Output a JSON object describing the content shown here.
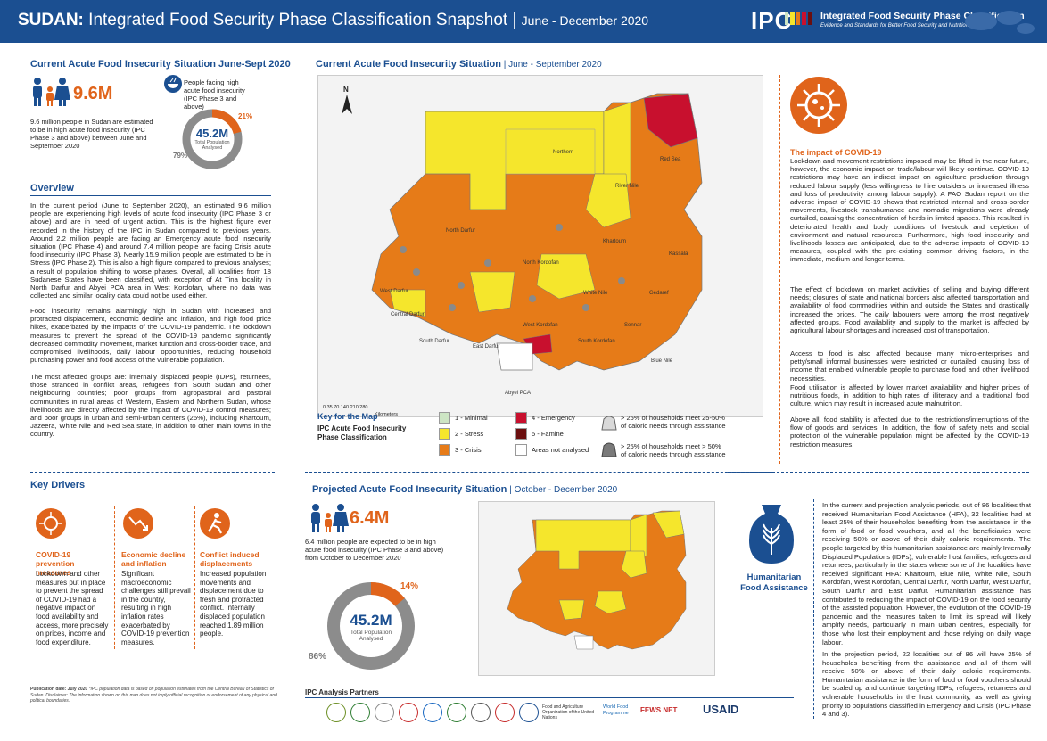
{
  "header": {
    "country": "SUDAN:",
    "title": "Integrated Food Security Phase Classification Snapshot",
    "sep": "|",
    "period": "June - December 2020",
    "logo": "IPC",
    "logo_name": "Integrated Food Security Phase Classification",
    "logo_tag": "Evidence and Standards for Better Food Security and Nutrition Decisions"
  },
  "current_summary": {
    "title": "Current Acute Food Insecurity Situation June-Sept 2020",
    "number": "9.6M",
    "description": "9.6 million people in Sudan are estimated to be in high acute food insecurity (IPC Phase 3 and above) between June and September 2020",
    "facing_label": "People facing high acute food insecurity (IPC Phase 3 and above)",
    "donut_total": "45.2M",
    "donut_caption": "Total Population Analysed",
    "pct_high": "21%",
    "pct_rest": "79%",
    "pct_high_value": 21
  },
  "overview": {
    "title": "Overview",
    "p1": "In the current period (June to September 2020), an estimated 9.6 million people are experiencing high levels of acute food insecurity (IPC Phase 3 or above) and are in need of urgent action. This is the highest figure ever recorded in the history of the IPC in Sudan compared to previous years. Around 2.2 million people are facing an Emergency acute food insecurity situation (IPC Phase 4) and around 7.4 million people are facing Crisis acute food insecurity (IPC Phase 3). Nearly 15.9 million people are estimated to be in Stress (IPC Phase 2). This is also a high figure compared to previous analyses; a result of population shifting to worse phases. Overall, all localities from 18 Sudanese States have been classified, with exception of At Tina locality in North Darfur and Abyei PCA area in West Kordofan, where no data was collected and similar locality data could not be used either.",
    "p2": "Food insecurity remains alarmingly high in Sudan with increased and protracted displacement, economic decline and inflation, and high food price hikes, exacerbated by the impacts of the COVID-19 pandemic. The lockdown measures to prevent the spread of the COVID-19 pandemic significantly decreased commodity movement, market function and cross-border trade, and compromised livelihoods, daily labour opportunities, reducing household purchasing power and food access of the vulnerable population.",
    "p3": "The most affected groups are: internally displaced people (IDPs), returnees, those stranded in conflict areas, refugees from South Sudan and other neighbouring countries; poor groups from agropastoral and pastoral communities in rural areas of Western, Eastern and Northern Sudan, whose livelihoods are directly affected by the impact of COVID-19 control measures; and poor groups in urban and semi-urban centers (25%), including Khartoum, Jazeera, White Nile and Red Sea state, in addition to other main towns in the country."
  },
  "current_map": {
    "title": "Current Acute Food Insecurity Situation",
    "sep": "|",
    "period": "June - September 2020",
    "north": "N",
    "scale": "0 35 70    140   210   280",
    "scale_unit": "Kilometers",
    "regions": [
      "Northern",
      "River Nile",
      "Red Sea",
      "North Darfur",
      "North Kordofan",
      "Khartoum",
      "Kassala",
      "Gedaref",
      "White Nile",
      "Sennar",
      "Blue Nile",
      "West Darfur",
      "Central Darfur",
      "South Darfur",
      "East Darfur",
      "West Kordofan",
      "South Kordofan",
      "Abyei PCA"
    ]
  },
  "legend": {
    "title": "Key for the Map",
    "subtitle": "IPC Acute Food Insecurity Phase Classification",
    "items": [
      {
        "label": "1 - Minimal",
        "color": "#cde5c4"
      },
      {
        "label": "2 - Stress",
        "color": "#f5e62c"
      },
      {
        "label": "3 - Crisis",
        "color": "#e67b18"
      },
      {
        "label": "4 - Emergency",
        "color": "#c8102e"
      },
      {
        "label": "5 - Famine",
        "color": "#6b0f0f"
      },
      {
        "label": "Areas not analysed",
        "color": "#ffffff"
      }
    ],
    "ha1": "> 25% of households meet 25-50% of caloric needs through assistance",
    "ha2": "> 25% of households meet > 50% of caloric needs through assistance"
  },
  "covid": {
    "title": "The impact of COVID-19",
    "p1": "Lockdown and movement restrictions imposed may be lifted in the near future, however, the economic impact on trade/labour will likely continue. COVID-19 restrictions may have an indirect impact on agriculture production through reduced labour supply (less willingness to hire outsiders or increased illness and loss of productivity among labour supply). A FAO Sudan report on the adverse impact of COVID-19 shows that restricted internal and cross-border movements, livestock transhumance and nomadic migrations were already curtailed, causing the concentration of herds in limited spaces. This resulted in deteriorated health and body conditions of livestock and depletion of environment and natural resources. Furthermore, high food insecurity and livelihoods losses are anticipated, due to the adverse impacts of COVID-19 measures, coupled with the pre-existing common driving factors, in the immediate, medium and longer terms.",
    "p2": "The effect of lockdown on market activities of selling and buying different needs; closures of state and national borders also affected transportation and availability of food commodities within and outside the States and drastically increased the prices. The daily labourers were among the most negatively affected groups. Food availability and supply to the market is affected by agricultural labour shortages and increased cost of transportation.",
    "p3": "Access to food is also affected because many micro-enterprises and petty/small informal businesses were restricted or curtailed, causing loss of income that enabled vulnerable people to purchase food and other livelihood necessities.",
    "p4": "Food utilisation is affected by lower market availability and higher prices of nutritious foods, in addition to high rates of illiteracy and a traditional food culture, which may result in increased acute malnutrition.",
    "p5": "Above all, food stability is affected due to the restrictions/interruptions of the flow of goods and services. In addition, the flow of safety nets and social protection of the vulnerable population might be affected by the COVID-19 restriction measures."
  },
  "drivers": {
    "title": "Key Drivers",
    "items": [
      {
        "title": "COVID-19 prevention measures",
        "text": "Lockdown and other measures put in place to prevent the spread of COVID-19 had a negative impact on food availability and access, more precisely on prices, income and food expenditure."
      },
      {
        "title": "Economic decline and inflation",
        "text": "Significant macroeconomic challenges still prevail in the country, resulting in high inflation rates exacerbated by COVID-19 prevention measures."
      },
      {
        "title": "Conflict induced displacements",
        "text": "Increased population movements and displacement due to fresh and protracted conflict. Internally displaced population reached 1.89 million people."
      }
    ]
  },
  "projected": {
    "title": "Projected Acute Food Insecurity Situation",
    "sep": "|",
    "period": "October - December 2020",
    "number": "6.4M",
    "description": "6.4 million people are expected to be in high acute food insecurity (IPC Phase 3 and above) from October to December 2020",
    "donut_total": "45.2M",
    "donut_caption": "Total Population Analysed",
    "pct_high": "14%",
    "pct_rest": "86%",
    "pct_high_value": 14
  },
  "humanitarian": {
    "title": "Humanitarian Food Assistance",
    "p1": "In the current and projection analysis periods, out of 86 localities that received Humanitarian Food Assistance (HFA), 32 localities had at least 25% of their households benefiting from the assistance in the form of food or food vouchers, and all the beneficiaries were receiving 50% or above of their daily caloric requirements. The people targeted by this humanitarian assistance are mainly Internally Displaced Populations (IDPs), vulnerable host families, refugees and returnees, particularly in the states where some of the localities have received significant HFA: Khartoum, Blue Nile, White Nile, South Kordofan, West Kordofan, Central Darfur, North Darfur, West Darfur, South Darfur and East Darfur. Humanitarian assistance has contributed to reducing the impact of COVID-19 on the food security of the assisted population. However, the evolution of the COVID-19 pandemic and the measures taken to limit its spread will likely amplify needs, particularly in main urban centres, especially for those who lost their employment and those relying on daily wage labour.",
    "p2": "In the projection period, 22 localities out of 86 will have 25% of households benefiting from the assistance and all of them will receive 50% or above of their daily caloric requirements. Humanitarian assistance in the form of food or food vouchers should be scaled up and continue targeting IDPs, refugees, returnees and vulnerable households in the host community, as well as giving priority to populations classified in Emergency and Crisis (IPC Phase 4 and 3)."
  },
  "footer": {
    "pub_label": "Publication date: July 2020",
    "pub_note": "*IPC population data is based on population estimates from the Central Bureau of Statistics of Sudan. Disclaimer: The information shown on this map does not imply official recognition or endorsement of any physical and political boundaries.",
    "partners_title": "IPC Analysis Partners",
    "fao": "Food and Agriculture Organization of the United Nations",
    "wfp": "World Food Programme",
    "fews": "FEWS NET",
    "usaid": "USAID"
  }
}
